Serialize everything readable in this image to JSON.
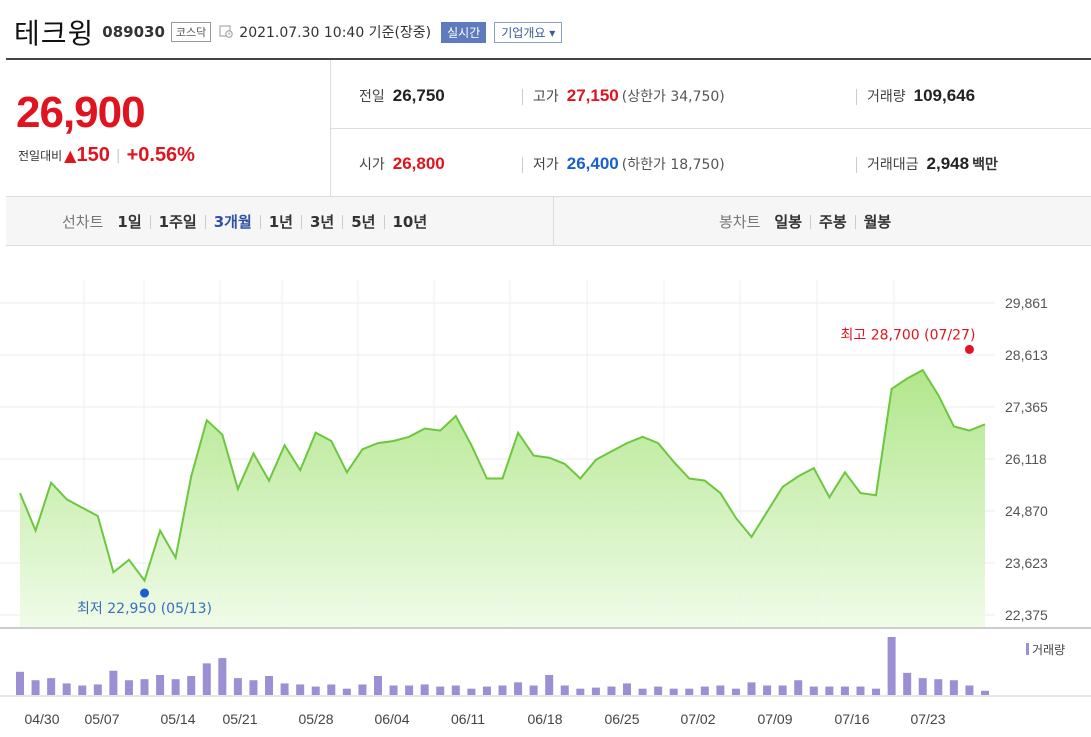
{
  "header": {
    "name": "테크윙",
    "code": "089030",
    "market": "코스닥",
    "datetime": "2021.07.30 10:40 기준(장중)",
    "realtime_label": "실시간",
    "overview_label": "기업개요 ▾"
  },
  "quote": {
    "price": "26,900",
    "change_label": "전일대비",
    "change_arrow": "▲",
    "change_value": "150",
    "change_pct": "+0.56%"
  },
  "stats": {
    "prev_label": "전일",
    "prev_value": "26,750",
    "high_label": "고가",
    "high_value": "27,150",
    "upper_limit": "(상한가 34,750)",
    "volume_label": "거래량",
    "volume_value": "109,646",
    "open_label": "시가",
    "open_value": "26,800",
    "low_label": "저가",
    "low_value": "26,400",
    "lower_limit": "(하한가 18,750)",
    "amount_label": "거래대금",
    "amount_value": "2,948",
    "amount_unit": "백만"
  },
  "tabs": {
    "line_label": "선차트",
    "line": [
      "1일",
      "1주일",
      "3개월",
      "1년",
      "3년",
      "5년",
      "10년"
    ],
    "candle_label": "봉차트",
    "candle": [
      "일봉",
      "주봉",
      "월봉"
    ]
  },
  "colors": {
    "up": "#e0141e",
    "down": "#1a5fd0",
    "line": "#6dc73e",
    "volume": "#9c8fd4"
  },
  "chart_data": {
    "type": "area",
    "y_ticks": [
      "29,861",
      "28,613",
      "27,365",
      "26,118",
      "24,870",
      "23,623",
      "22,375"
    ],
    "ylim": [
      22375,
      29861
    ],
    "x_ticks": [
      "04/30",
      "05/07",
      "05/14",
      "05/21",
      "05/28",
      "06/04",
      "06/11",
      "06/18",
      "06/25",
      "07/02",
      "07/09",
      "07/16",
      "07/23"
    ],
    "price": [
      25300,
      24400,
      25550,
      25150,
      24950,
      24750,
      23400,
      23700,
      23200,
      24400,
      23750,
      25700,
      27050,
      26700,
      25400,
      26250,
      25600,
      26450,
      25850,
      26750,
      26550,
      25800,
      26350,
      26500,
      26550,
      26650,
      26850,
      26800,
      27150,
      26450,
      25650,
      25650,
      26750,
      26200,
      26150,
      26000,
      25650,
      26100,
      26300,
      26500,
      26650,
      26500,
      26050,
      25650,
      25600,
      25300,
      24700,
      24250,
      24850,
      25450,
      25700,
      25900,
      25200,
      25800,
      25300,
      25250,
      27800,
      28050,
      28250,
      27650,
      26900,
      26800,
      26950
    ],
    "volume": [
      22,
      14,
      16,
      11,
      9,
      10,
      23,
      14,
      15,
      19,
      15,
      18,
      30,
      35,
      16,
      14,
      18,
      11,
      10,
      8,
      10,
      6,
      10,
      18,
      9,
      9,
      10,
      8,
      9,
      6,
      8,
      9,
      12,
      9,
      19,
      9,
      6,
      7,
      8,
      11,
      6,
      8,
      6,
      6,
      8,
      9,
      6,
      12,
      9,
      9,
      14,
      8,
      8,
      8,
      8,
      6,
      55,
      21,
      16,
      15,
      14,
      9,
      4
    ],
    "max_label": "최고 28,700 (07/27)",
    "min_label": "최저 22,950 (05/13)",
    "max_value": 28700,
    "min_value": 22950,
    "max_index": 61,
    "min_index": 8,
    "volume_legend": "거래량"
  }
}
